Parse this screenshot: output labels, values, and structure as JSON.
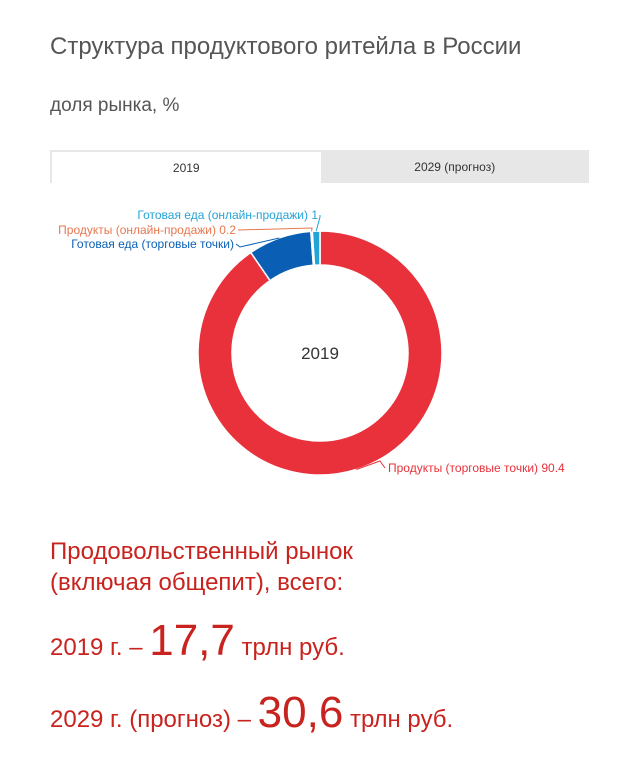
{
  "header": {
    "title": "Структура продуктового ритейла в России",
    "subtitle": "доля рынка, %"
  },
  "tabs": [
    {
      "label": "2019",
      "active": true
    },
    {
      "label": "2029 (прогноз)",
      "active": false
    }
  ],
  "chart_data": {
    "type": "pie",
    "center_label": "2019",
    "series": [
      {
        "name": "Продукты (торговые точки)",
        "value": 90.4,
        "color": "#e8313a",
        "label": "Продукты (торговые точки) 90.4"
      },
      {
        "name": "Готовая еда (торговые точки)",
        "value": 8.4,
        "color": "#0a5fb4",
        "label": "Готовая еда (торговые точки)"
      },
      {
        "name": "Продукты (онлайн-продажи)",
        "value": 0.2,
        "color": "#e8774f",
        "label": "Продукты (онлайн-продажи) 0.2"
      },
      {
        "name": "Готовая еда (онлайн-продажи)",
        "value": 1,
        "color": "#24a3d6",
        "label": "Готовая еда (онлайн-продажи) 1"
      }
    ]
  },
  "market": {
    "heading_line1": "Продовольственный рынок",
    "heading_line2": "(включая общепит), всего:",
    "rows": [
      {
        "prefix": "2019 г. – ",
        "value": "17,7",
        "suffix": " трлн руб."
      },
      {
        "prefix": "2029 г. (прогноз) – ",
        "value": "30,6",
        "suffix": " трлн руб."
      }
    ]
  },
  "colors": {
    "accent_red": "#c8231e",
    "text_gray": "#555555",
    "tab_bg": "#e7e7e7"
  }
}
